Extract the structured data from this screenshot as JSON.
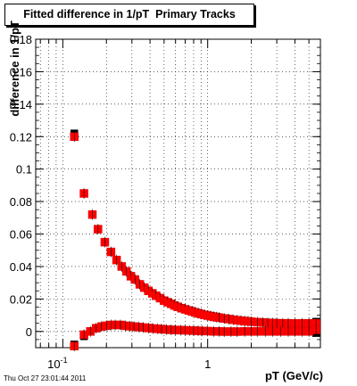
{
  "title": "Fitted difference in 1/pT  Primary Tracks",
  "timestamp": "Thu Oct 27 23:01:44 2011",
  "colors": {
    "upper_series": "#ff0000",
    "lower_series": "#ff0000",
    "reference": "#000000"
  },
  "chart_data": {
    "type": "scatter",
    "xlabel": "pT (GeV/c)",
    "ylabel": "difference in 1/pT",
    "xscale": "log",
    "xlim": [
      0.065,
      6.0
    ],
    "ylim": [
      -0.01,
      0.18
    ],
    "grid": true,
    "x_tick_labels": [
      "10^-1",
      "1"
    ],
    "x_tick_values": [
      0.1,
      1
    ],
    "y_tick_labels": [
      "0",
      "0.02",
      "0.04",
      "0.06",
      "0.08",
      "0.1",
      "0.12",
      "0.14",
      "0.16",
      "0.18"
    ],
    "y_tick_values": [
      0,
      0.02,
      0.04,
      0.06,
      0.08,
      0.1,
      0.12,
      0.14,
      0.16,
      0.18
    ],
    "series": [
      {
        "marker": "square",
        "x": [
          0.12,
          0.14,
          0.16,
          0.175,
          0.195,
          0.215,
          0.235,
          0.255,
          0.275,
          0.295,
          0.315,
          0.34,
          0.365,
          0.39,
          0.415,
          0.44,
          0.47,
          0.5,
          0.53,
          0.56,
          0.59,
          0.62,
          0.66,
          0.7,
          0.74,
          0.78,
          0.82,
          0.86,
          0.9,
          0.95,
          1.0,
          1.05,
          1.1,
          1.15,
          1.2,
          1.3,
          1.4,
          1.5,
          1.6,
          1.7,
          1.8,
          1.9,
          2.0,
          2.2,
          2.4,
          2.6,
          2.8,
          3.0,
          3.3,
          3.6,
          4.0,
          4.5,
          5.0,
          5.6
        ],
        "y": [
          0.12,
          0.085,
          0.072,
          0.063,
          0.055,
          0.049,
          0.044,
          0.04,
          0.037,
          0.034,
          0.032,
          0.029,
          0.027,
          0.025,
          0.0235,
          0.022,
          0.0205,
          0.019,
          0.018,
          0.017,
          0.016,
          0.0152,
          0.0143,
          0.0136,
          0.0129,
          0.0123,
          0.0117,
          0.0112,
          0.0107,
          0.0102,
          0.0098,
          0.0094,
          0.0091,
          0.0088,
          0.0085,
          0.008,
          0.0076,
          0.0072,
          0.0069,
          0.0066,
          0.0064,
          0.0062,
          0.006,
          0.0057,
          0.0055,
          0.0053,
          0.0052,
          0.0051,
          0.005,
          0.005,
          0.0049,
          0.005,
          0.005,
          0.005
        ]
      },
      {
        "marker": "square",
        "x": [
          0.12,
          0.14,
          0.155,
          0.17,
          0.185,
          0.2,
          0.215,
          0.23,
          0.25,
          0.27,
          0.29,
          0.31,
          0.335,
          0.36,
          0.39,
          0.42,
          0.45,
          0.48,
          0.52,
          0.56,
          0.6,
          0.65,
          0.7,
          0.75,
          0.8,
          0.86,
          0.92,
          1.0,
          1.1,
          1.2,
          1.3,
          1.45,
          1.6,
          1.8,
          2.0,
          2.2,
          2.5,
          2.8,
          3.2,
          3.6,
          4.0,
          4.5,
          5.0,
          5.6
        ],
        "y": [
          -0.009,
          -0.002,
          0.0,
          0.002,
          0.003,
          0.0035,
          0.004,
          0.004,
          0.004,
          0.0035,
          0.0032,
          0.003,
          0.0027,
          0.0024,
          0.0021,
          0.0018,
          0.0016,
          0.0014,
          0.0012,
          0.001,
          0.0009,
          0.0008,
          0.0007,
          0.0006,
          0.0005,
          0.0004,
          0.0003,
          0.0002,
          0.0,
          0.0,
          -0.0001,
          -0.0001,
          -0.0001,
          0.0,
          0.0,
          0.0,
          0.0,
          0.0,
          0.0,
          0.0,
          0.0,
          0.0,
          0.0,
          0.001
        ]
      },
      {
        "marker": "square",
        "x": [
          0.12,
          0.12,
          0.14,
          5.6,
          5.6
        ],
        "y": [
          0.122,
          -0.008,
          -0.003,
          0.006,
          -0.001
        ]
      }
    ]
  }
}
